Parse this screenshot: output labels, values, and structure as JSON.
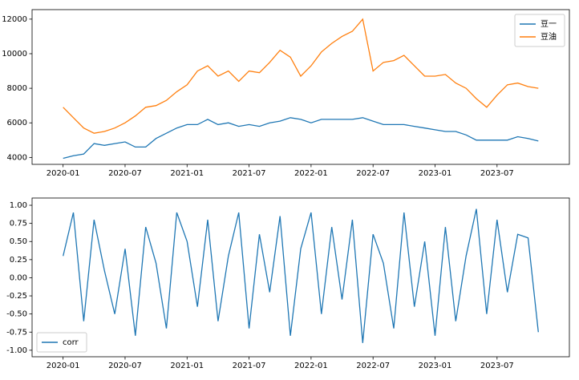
{
  "chart_data": [
    {
      "type": "line",
      "x": [
        "2020-01",
        "2020-02",
        "2020-03",
        "2020-04",
        "2020-05",
        "2020-06",
        "2020-07",
        "2020-08",
        "2020-09",
        "2020-10",
        "2020-11",
        "2020-12",
        "2021-01",
        "2021-02",
        "2021-03",
        "2021-04",
        "2021-05",
        "2021-06",
        "2021-07",
        "2021-08",
        "2021-09",
        "2021-10",
        "2021-11",
        "2021-12",
        "2022-01",
        "2022-02",
        "2022-03",
        "2022-04",
        "2022-05",
        "2022-06",
        "2022-07",
        "2022-08",
        "2022-09",
        "2022-10",
        "2022-11",
        "2022-12",
        "2023-01",
        "2023-02",
        "2023-03",
        "2023-04",
        "2023-05",
        "2023-06",
        "2023-07",
        "2023-08",
        "2023-09",
        "2023-10",
        "2023-11"
      ],
      "series": [
        {
          "name": "豆一",
          "color": "#1f77b4",
          "values": [
            3950,
            4100,
            4200,
            4800,
            4700,
            4800,
            4900,
            4600,
            4600,
            5100,
            5400,
            5700,
            5900,
            5900,
            6200,
            5900,
            6000,
            5800,
            5900,
            5800,
            6000,
            6100,
            6300,
            6200,
            6000,
            6200,
            6200,
            6200,
            6200,
            6300,
            6100,
            5900,
            5900,
            5900,
            5800,
            5700,
            5600,
            5500,
            5500,
            5300,
            5000,
            5000,
            5000,
            5000,
            5200,
            5100,
            4950
          ]
        },
        {
          "name": "豆油",
          "color": "#ff7f0e",
          "values": [
            6900,
            6300,
            5700,
            5400,
            5500,
            5700,
            6000,
            6400,
            6900,
            7000,
            7300,
            7800,
            8200,
            9000,
            9300,
            8700,
            9000,
            8400,
            9000,
            8900,
            9500,
            10200,
            9800,
            8700,
            9300,
            10100,
            10600,
            11000,
            11300,
            12000,
            9000,
            9500,
            9600,
            9900,
            9300,
            8700,
            8700,
            8800,
            8300,
            8000,
            7400,
            6900,
            7600,
            8200,
            8300,
            8100,
            8000
          ]
        }
      ],
      "xlim": [
        "2019-10",
        "2024-02"
      ],
      "xticks": [
        "2020-01",
        "2020-07",
        "2021-01",
        "2021-07",
        "2022-01",
        "2022-07",
        "2023-01",
        "2023-07"
      ],
      "ylim": [
        3600,
        12550
      ],
      "yticks": [
        4000,
        6000,
        8000,
        10000,
        12000
      ],
      "legend": "upper right"
    },
    {
      "type": "line",
      "x": [
        "2020-01",
        "2020-02",
        "2020-03",
        "2020-04",
        "2020-05",
        "2020-06",
        "2020-07",
        "2020-08",
        "2020-09",
        "2020-10",
        "2020-11",
        "2020-12",
        "2021-01",
        "2021-02",
        "2021-03",
        "2021-04",
        "2021-05",
        "2021-06",
        "2021-07",
        "2021-08",
        "2021-09",
        "2021-10",
        "2021-11",
        "2021-12",
        "2022-01",
        "2022-02",
        "2022-03",
        "2022-04",
        "2022-05",
        "2022-06",
        "2022-07",
        "2022-08",
        "2022-09",
        "2022-10",
        "2022-11",
        "2022-12",
        "2023-01",
        "2023-02",
        "2023-03",
        "2023-04",
        "2023-05",
        "2023-06",
        "2023-07",
        "2023-08",
        "2023-09",
        "2023-10",
        "2023-11"
      ],
      "series": [
        {
          "name": "corr",
          "color": "#1f77b4",
          "values": [
            0.3,
            0.9,
            -0.6,
            0.8,
            0.1,
            -0.5,
            0.4,
            -0.8,
            0.7,
            0.2,
            -0.7,
            0.9,
            0.5,
            -0.4,
            0.8,
            -0.6,
            0.3,
            0.9,
            -0.7,
            0.6,
            -0.2,
            0.85,
            -0.8,
            0.4,
            0.9,
            -0.5,
            0.7,
            -0.3,
            0.8,
            -0.9,
            0.6,
            0.2,
            -0.7,
            0.9,
            -0.4,
            0.5,
            -0.8,
            0.7,
            -0.6,
            0.3,
            0.95,
            -0.5,
            0.8,
            -0.2,
            0.6,
            0.55,
            -0.75
          ]
        }
      ],
      "xlim": [
        "2019-10",
        "2024-02"
      ],
      "xticks": [
        "2020-01",
        "2020-07",
        "2021-01",
        "2021-07",
        "2022-01",
        "2022-07",
        "2023-01",
        "2023-07"
      ],
      "ylim": [
        -1.09,
        1.1
      ],
      "yticks": [
        {
          "value": 1,
          "label": "1.00"
        },
        {
          "value": 0.75,
          "label": "0.75"
        },
        {
          "value": 0.5,
          "label": "0.50"
        },
        {
          "value": 0.25,
          "label": "0.25"
        },
        {
          "value": 0,
          "label": "0.00"
        },
        {
          "value": -0.25,
          "label": "-0.25"
        },
        {
          "value": -0.5,
          "label": "-0.50"
        },
        {
          "value": -0.75,
          "label": "-0.75"
        },
        {
          "value": -1,
          "label": "-1.00"
        }
      ],
      "legend": "lower left"
    }
  ]
}
